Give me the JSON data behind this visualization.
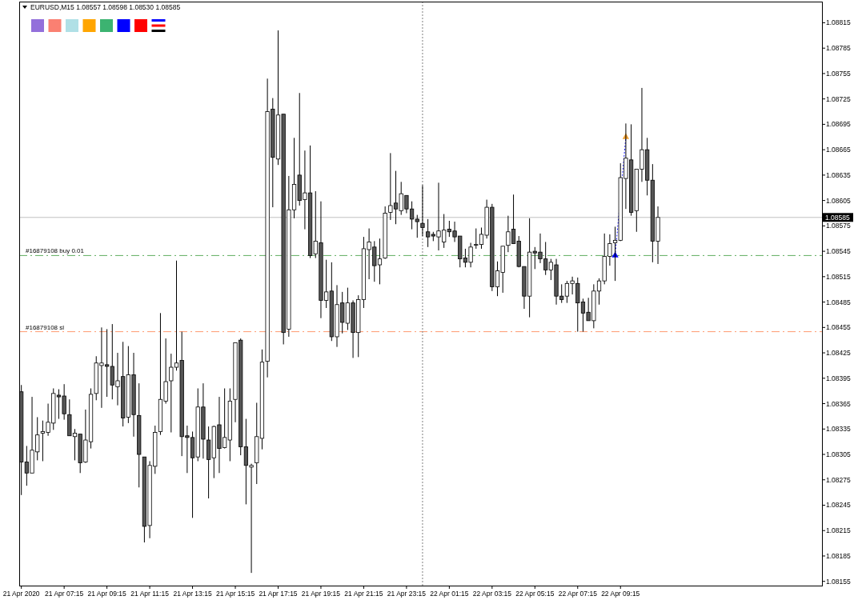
{
  "chart_data": {
    "type": "candlestick",
    "title": "EURUSD,M15 1.08557 1.08598 1.08530 1.08585",
    "x": [
      "2020-04-21T05:15",
      "2020-04-21T05:30",
      "2020-04-21T05:45",
      "2020-04-21T06:00",
      "2020-04-21T06:15",
      "2020-04-21T06:30",
      "2020-04-21T06:45",
      "2020-04-21T07:00",
      "2020-04-21T07:15",
      "2020-04-21T07:30",
      "2020-04-21T07:45",
      "2020-04-21T08:00",
      "2020-04-21T08:15",
      "2020-04-21T08:30",
      "2020-04-21T08:45",
      "2020-04-21T09:00",
      "2020-04-21T09:15",
      "2020-04-21T09:30",
      "2020-04-21T09:45",
      "2020-04-21T10:00",
      "2020-04-21T10:15",
      "2020-04-21T10:30",
      "2020-04-21T10:45",
      "2020-04-21T11:00",
      "2020-04-21T11:15",
      "2020-04-21T11:30",
      "2020-04-21T11:45",
      "2020-04-21T12:00",
      "2020-04-21T12:15",
      "2020-04-21T12:30",
      "2020-04-21T12:45",
      "2020-04-21T13:00",
      "2020-04-21T13:15",
      "2020-04-21T13:30",
      "2020-04-21T13:45",
      "2020-04-21T14:00",
      "2020-04-21T14:15",
      "2020-04-21T14:30",
      "2020-04-21T14:45",
      "2020-04-21T15:00",
      "2020-04-21T15:15",
      "2020-04-21T15:30",
      "2020-04-21T15:45",
      "2020-04-21T16:00",
      "2020-04-21T16:15",
      "2020-04-21T16:30",
      "2020-04-21T16:45",
      "2020-04-21T17:00",
      "2020-04-21T17:15",
      "2020-04-21T17:30",
      "2020-04-21T17:45",
      "2020-04-21T18:00",
      "2020-04-21T18:15",
      "2020-04-21T18:30",
      "2020-04-21T18:45",
      "2020-04-21T19:00",
      "2020-04-21T19:15",
      "2020-04-21T19:30",
      "2020-04-21T19:45",
      "2020-04-21T20:00",
      "2020-04-21T20:15",
      "2020-04-21T20:30",
      "2020-04-21T20:45",
      "2020-04-21T21:00",
      "2020-04-21T21:15",
      "2020-04-21T21:30",
      "2020-04-21T21:45",
      "2020-04-21T22:00",
      "2020-04-21T22:15",
      "2020-04-21T22:30",
      "2020-04-21T22:45",
      "2020-04-21T23:00",
      "2020-04-21T23:15",
      "2020-04-21T23:30",
      "2020-04-21T23:45",
      "2020-04-22T00:00",
      "2020-04-22T00:15",
      "2020-04-22T00:30",
      "2020-04-22T00:45",
      "2020-04-22T01:00",
      "2020-04-22T01:15",
      "2020-04-22T01:30",
      "2020-04-22T01:45",
      "2020-04-22T02:00",
      "2020-04-22T02:15",
      "2020-04-22T02:30",
      "2020-04-22T02:45",
      "2020-04-22T03:00",
      "2020-04-22T03:15",
      "2020-04-22T03:30",
      "2020-04-22T03:45",
      "2020-04-22T04:00",
      "2020-04-22T04:15",
      "2020-04-22T04:30",
      "2020-04-22T04:45",
      "2020-04-22T05:00",
      "2020-04-22T05:15",
      "2020-04-22T05:30",
      "2020-04-22T05:45",
      "2020-04-22T06:00",
      "2020-04-22T06:15",
      "2020-04-22T06:30",
      "2020-04-22T06:45",
      "2020-04-22T07:00",
      "2020-04-22T07:15",
      "2020-04-22T07:30",
      "2020-04-22T07:45",
      "2020-04-22T08:00",
      "2020-04-22T08:15",
      "2020-04-22T08:30",
      "2020-04-22T08:45",
      "2020-04-22T09:00",
      "2020-04-22T09:15",
      "2020-04-22T09:30",
      "2020-04-22T09:45",
      "2020-04-22T10:00",
      "2020-04-22T10:15",
      "2020-04-22T10:30",
      "2020-04-22T10:45",
      "2020-04-22T11:00"
    ],
    "ohlc": [
      [
        1.08379,
        1.08387,
        1.08257,
        1.08296
      ],
      [
        1.08296,
        1.08315,
        1.08268,
        1.08283
      ],
      [
        1.08283,
        1.08373,
        1.08283,
        1.0831
      ],
      [
        1.08308,
        1.08349,
        1.08298,
        1.08328
      ],
      [
        1.0833,
        1.08345,
        1.08297,
        1.08332
      ],
      [
        1.08331,
        1.08365,
        1.08327,
        1.08343
      ],
      [
        1.08342,
        1.08383,
        1.08334,
        1.08377
      ],
      [
        1.08375,
        1.08382,
        1.08347,
        1.08373
      ],
      [
        1.08374,
        1.08388,
        1.08346,
        1.08353
      ],
      [
        1.08352,
        1.0837,
        1.08327,
        1.08327
      ],
      [
        1.08326,
        1.08335,
        1.08298,
        1.0833
      ],
      [
        1.08329,
        1.08329,
        1.08283,
        1.08295
      ],
      [
        1.08296,
        1.08358,
        1.08295,
        1.08322
      ],
      [
        1.0832,
        1.08383,
        1.08312,
        1.08376
      ],
      [
        1.08377,
        1.08421,
        1.08369,
        1.08413
      ],
      [
        1.0841,
        1.08455,
        1.0836,
        1.08413
      ],
      [
        1.08411,
        1.08453,
        1.08373,
        1.08409
      ],
      [
        1.08409,
        1.08459,
        1.0837,
        1.08387
      ],
      [
        1.08385,
        1.08425,
        1.08363,
        1.08392
      ],
      [
        1.08397,
        1.08438,
        1.08338,
        1.08348
      ],
      [
        1.08349,
        1.08433,
        1.08342,
        1.08399
      ],
      [
        1.08399,
        1.08425,
        1.08326,
        1.08352
      ],
      [
        1.08351,
        1.08389,
        1.08266,
        1.08305
      ],
      [
        1.08302,
        1.08302,
        1.08201,
        1.0822
      ],
      [
        1.08221,
        1.08297,
        1.08206,
        1.08292
      ],
      [
        1.08291,
        1.08339,
        1.08282,
        1.08331
      ],
      [
        1.08332,
        1.08472,
        1.08328,
        1.0837
      ],
      [
        1.08368,
        1.08442,
        1.08365,
        1.08391
      ],
      [
        1.08392,
        1.08424,
        1.08331,
        1.08408
      ],
      [
        1.08408,
        1.08534,
        1.08404,
        1.08413
      ],
      [
        1.08416,
        1.0845,
        1.08303,
        1.08326
      ],
      [
        1.08327,
        1.08339,
        1.08283,
        1.08325
      ],
      [
        1.08325,
        1.08332,
        1.0823,
        1.08301
      ],
      [
        1.08302,
        1.08383,
        1.08297,
        1.08361
      ],
      [
        1.08361,
        1.08389,
        1.083,
        1.08323
      ],
      [
        1.08322,
        1.08338,
        1.08253,
        1.08299
      ],
      [
        1.08301,
        1.08339,
        1.08277,
        1.08338
      ],
      [
        1.0834,
        1.08373,
        1.08283,
        1.08312
      ],
      [
        1.08313,
        1.08383,
        1.08312,
        1.08325
      ],
      [
        1.08322,
        1.08383,
        1.08297,
        1.08368
      ],
      [
        1.0837,
        1.08437,
        1.08343,
        1.08437
      ],
      [
        1.0844,
        1.08442,
        1.08304,
        1.08314
      ],
      [
        1.08314,
        1.08347,
        1.08246,
        1.08292
      ],
      [
        1.0829,
        1.08294,
        1.08165,
        1.08292
      ],
      [
        1.08295,
        1.08366,
        1.0827,
        1.08326
      ],
      [
        1.08324,
        1.08429,
        1.08311,
        1.08414
      ],
      [
        1.08415,
        1.08749,
        1.08396,
        1.0871
      ],
      [
        1.08713,
        1.08726,
        1.08597,
        1.08656
      ],
      [
        1.08654,
        1.08806,
        1.08647,
        1.08706
      ],
      [
        1.08707,
        1.08707,
        1.08435,
        1.08449
      ],
      [
        1.08453,
        1.08634,
        1.08444,
        1.08594
      ],
      [
        1.08594,
        1.08679,
        1.08584,
        1.08624
      ],
      [
        1.08635,
        1.08732,
        1.08599,
        1.08605
      ],
      [
        1.08606,
        1.08664,
        1.08571,
        1.08614
      ],
      [
        1.08614,
        1.0867,
        1.08537,
        1.0854
      ],
      [
        1.08542,
        1.08616,
        1.08537,
        1.08557
      ],
      [
        1.08555,
        1.08604,
        1.08466,
        1.08487
      ],
      [
        1.08487,
        1.08535,
        1.08478,
        1.08497
      ],
      [
        1.08498,
        1.08532,
        1.08439,
        1.08444
      ],
      [
        1.08444,
        1.08505,
        1.08432,
        1.08482
      ],
      [
        1.08484,
        1.08497,
        1.08448,
        1.08461
      ],
      [
        1.0846,
        1.08502,
        1.08452,
        1.08484
      ],
      [
        1.08484,
        1.08487,
        1.08419,
        1.08449
      ],
      [
        1.08449,
        1.08493,
        1.0842,
        1.08488
      ],
      [
        1.08488,
        1.08562,
        1.08478,
        1.08548
      ],
      [
        1.08547,
        1.08572,
        1.08512,
        1.08556
      ],
      [
        1.0855,
        1.08557,
        1.08509,
        1.08528
      ],
      [
        1.08529,
        1.0856,
        1.08506,
        1.08536
      ],
      [
        1.08537,
        1.08598,
        1.08536,
        1.0859
      ],
      [
        1.08591,
        1.08661,
        1.08582,
        1.08599
      ],
      [
        1.08602,
        1.0864,
        1.08577,
        1.08595
      ],
      [
        1.08593,
        1.08627,
        1.08588,
        1.08613
      ],
      [
        1.08611,
        1.08611,
        1.0859,
        1.08595
      ],
      [
        1.08595,
        1.08604,
        1.08571,
        1.08583
      ],
      [
        1.08583,
        1.08588,
        1.08561,
        1.0858
      ],
      [
        1.08578,
        1.08623,
        1.08563,
        1.08573
      ],
      [
        1.08568,
        1.08583,
        1.0855,
        1.08562
      ],
      [
        1.08565,
        1.08568,
        1.08557,
        1.08563
      ],
      [
        1.08562,
        1.08626,
        1.08546,
        1.08569
      ],
      [
        1.08556,
        1.08589,
        1.08549,
        1.0857
      ],
      [
        1.08571,
        1.08581,
        1.08562,
        1.08568
      ],
      [
        1.08569,
        1.0858,
        1.08556,
        1.08562
      ],
      [
        1.08563,
        1.08563,
        1.08526,
        1.08536
      ],
      [
        1.08537,
        1.08548,
        1.08526,
        1.08532
      ],
      [
        1.08532,
        1.08555,
        1.08526,
        1.0855
      ],
      [
        1.08553,
        1.08572,
        1.08548,
        1.08553
      ],
      [
        1.08553,
        1.08573,
        1.08548,
        1.08565
      ],
      [
        1.08564,
        1.08606,
        1.0856,
        1.08597
      ],
      [
        1.08597,
        1.08601,
        1.08498,
        1.08503
      ],
      [
        1.08503,
        1.08533,
        1.08492,
        1.08522
      ],
      [
        1.0852,
        1.08551,
        1.08496,
        1.08551
      ],
      [
        1.08552,
        1.08587,
        1.08544,
        1.08568
      ],
      [
        1.08571,
        1.08612,
        1.08554,
        1.08554
      ],
      [
        1.08557,
        1.08563,
        1.08526,
        1.08527
      ],
      [
        1.08527,
        1.08527,
        1.08477,
        1.08492
      ],
      [
        1.08492,
        1.08584,
        1.08467,
        1.08544
      ],
      [
        1.08545,
        1.0855,
        1.08524,
        1.08543
      ],
      [
        1.08544,
        1.08566,
        1.08531,
        1.08536
      ],
      [
        1.08536,
        1.08556,
        1.08517,
        1.08523
      ],
      [
        1.08523,
        1.08536,
        1.08511,
        1.08532
      ],
      [
        1.08529,
        1.08536,
        1.08482,
        1.08492
      ],
      [
        1.08492,
        1.08506,
        1.08484,
        1.08488
      ],
      [
        1.08492,
        1.0851,
        1.08484,
        1.08507
      ],
      [
        1.08507,
        1.08515,
        1.08494,
        1.0851
      ],
      [
        1.08507,
        1.08514,
        1.0845,
        1.08484
      ],
      [
        1.08485,
        1.08489,
        1.0845,
        1.08472
      ],
      [
        1.08473,
        1.0849,
        1.08463,
        1.08463
      ],
      [
        1.08463,
        1.08506,
        1.08454,
        1.08498
      ],
      [
        1.08498,
        1.08513,
        1.08482,
        1.0851
      ],
      [
        1.0851,
        1.08566,
        1.08506,
        1.08539
      ],
      [
        1.08539,
        1.08565,
        1.08528,
        1.08554
      ],
      [
        1.08555,
        1.08574,
        1.0851,
        1.08558
      ],
      [
        1.08558,
        1.08649,
        1.08557,
        1.08632
      ],
      [
        1.08631,
        1.08696,
        1.08595,
        1.08655
      ],
      [
        1.08653,
        1.08695,
        1.08587,
        1.08591
      ],
      [
        1.08593,
        1.08642,
        1.08568,
        1.08642
      ],
      [
        1.08642,
        1.08738,
        1.08627,
        1.08665
      ],
      [
        1.08665,
        1.08679,
        1.08611,
        1.08629
      ],
      [
        1.08629,
        1.08648,
        1.08532,
        1.08557
      ],
      [
        1.08557,
        1.08598,
        1.0853,
        1.08585
      ]
    ],
    "series": [
      {
        "type": "line",
        "x": [
          "2020-04-22T09:00",
          "2020-04-22T09:30"
        ],
        "values": [
          1.0854,
          1.0868
        ],
        "color": "#1a1aff",
        "line_style": "dotted",
        "marker": "triangle",
        "colors": [
          "#0000ff",
          "#f0a030"
        ]
      }
    ],
    "xlim": [
      "2020-04-21T05:09",
      "2020-04-22T18:40"
    ],
    "xticks": [
      {
        "value": "2020-04-21T05:15",
        "label": "21 Apr 2020"
      },
      {
        "value": "2020-04-21T07:15",
        "label": "21 Apr 07:15"
      },
      {
        "value": "2020-04-21T09:15",
        "label": "21 Apr 09:15"
      },
      {
        "value": "2020-04-21T11:15",
        "label": "21 Apr 11:15"
      },
      {
        "value": "2020-04-21T13:15",
        "label": "21 Apr 13:15"
      },
      {
        "value": "2020-04-21T15:15",
        "label": "21 Apr 15:15"
      },
      {
        "value": "2020-04-21T17:15",
        "label": "21 Apr 17:15"
      },
      {
        "value": "2020-04-21T19:15",
        "label": "21 Apr 19:15"
      },
      {
        "value": "2020-04-21T21:15",
        "label": "21 Apr 21:15"
      },
      {
        "value": "2020-04-21T23:15",
        "label": "21 Apr 23:15"
      },
      {
        "value": "2020-04-22T01:15",
        "label": "22 Apr 01:15"
      },
      {
        "value": "2020-04-22T03:15",
        "label": "22 Apr 03:15"
      },
      {
        "value": "2020-04-22T05:15",
        "label": "22 Apr 05:15"
      },
      {
        "value": "2020-04-22T07:15",
        "label": "22 Apr 07:15"
      },
      {
        "value": "2020-04-22T09:15",
        "label": "22 Apr 09:15"
      }
    ],
    "ylim": [
      1.0815,
      1.0884
    ],
    "yticks": [
      1.08815,
      1.08785,
      1.08755,
      1.08725,
      1.08695,
      1.08665,
      1.08635,
      1.08605,
      1.08575,
      1.08545,
      1.08515,
      1.08485,
      1.08455,
      1.08425,
      1.08395,
      1.08365,
      1.08335,
      1.08305,
      1.08275,
      1.08245,
      1.08215,
      1.08185,
      1.08155
    ],
    "ref_lines": [
      {
        "axis": "y",
        "value": 1.0854,
        "label": "#16879108 buy 0.01",
        "color": "#5fad5f",
        "line_style": "dashed"
      },
      {
        "axis": "y",
        "value": 1.0845,
        "label": "#16879108 sl",
        "color": "#ff9a70",
        "line_style": "dashed"
      },
      {
        "axis": "y",
        "value": 1.08585,
        "label": "1.08585",
        "color": "#c0c0c0",
        "line_style": "solid"
      },
      {
        "axis": "x",
        "value": "2020-04-22T00:00",
        "color": "#808080",
        "line_style": "dotted"
      }
    ]
  }
}
